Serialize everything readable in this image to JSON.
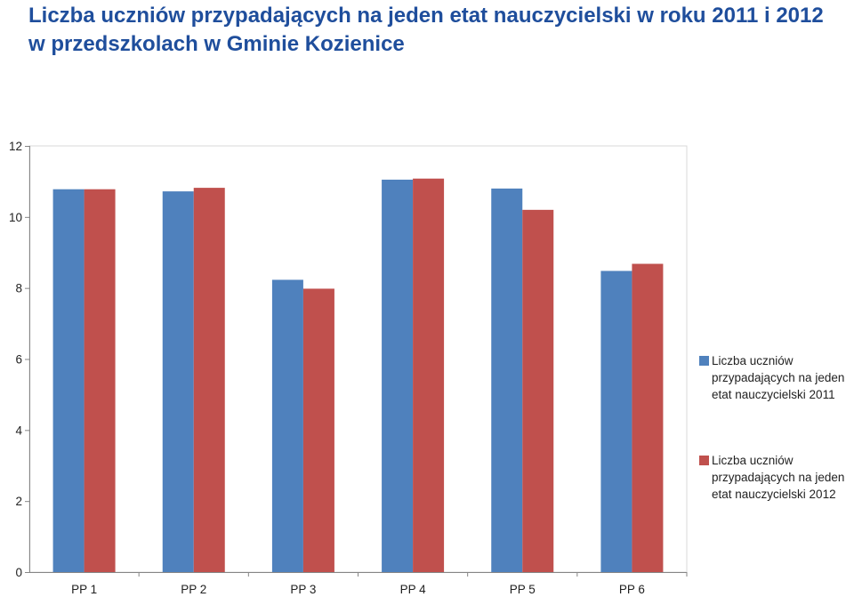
{
  "chart_data": {
    "type": "bar",
    "title_line1": "Liczba uczniów przypadających na jeden etat nauczycielski w roku 2011 i 2012",
    "title_line2": "w przedszkolach w Gminie Kozienice",
    "xlabel": "",
    "ylabel": "",
    "categories": [
      "PP 1",
      "PP 2",
      "PP 3",
      "PP 4",
      "PP 5",
      "PP 6"
    ],
    "series": [
      {
        "name": "Liczba uczniów przypadających na jeden etat nauczycielski 2011",
        "color": "#4f81bd",
        "values": [
          10.78,
          10.72,
          8.23,
          11.05,
          10.8,
          8.48
        ]
      },
      {
        "name": "Liczba uczniów przypadających na jeden etat nauczycielski 2012",
        "color": "#c0504d",
        "values": [
          10.78,
          10.82,
          7.98,
          11.08,
          10.2,
          8.68
        ]
      }
    ],
    "yticks": [
      "0",
      "2",
      "4",
      "6",
      "8",
      "10",
      "12"
    ],
    "ylim": [
      0,
      12
    ],
    "grid": false,
    "legend_position": "right"
  }
}
